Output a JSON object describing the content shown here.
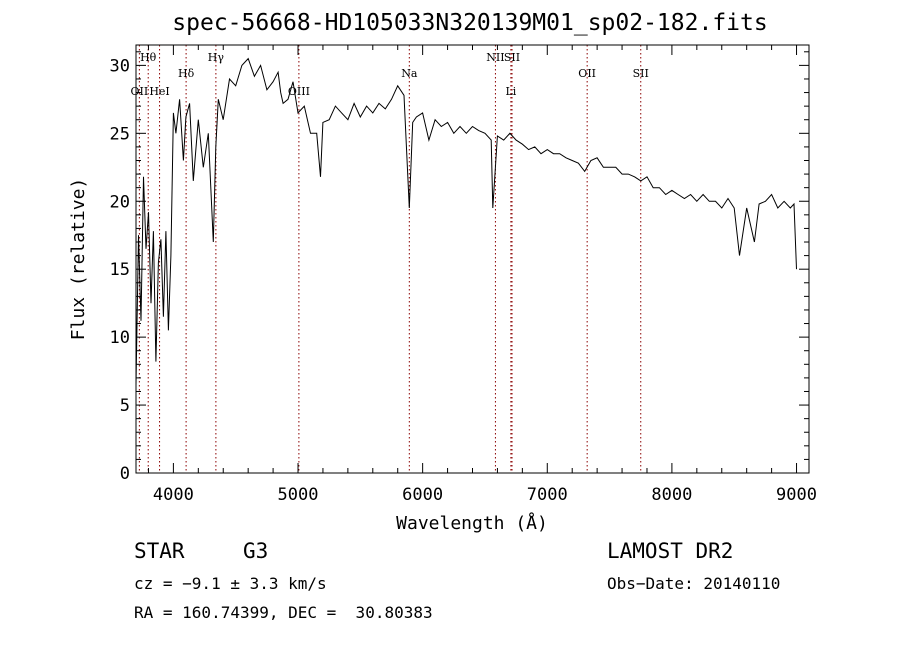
{
  "chart_data": {
    "type": "line",
    "title": "spec-56668-HD105033N320139M01_sp02-182.fits",
    "xlabel": "Wavelength (Å)",
    "ylabel": "Flux (relative)",
    "xlim": [
      3700,
      9100
    ],
    "ylim": [
      0,
      31.5
    ],
    "xticks": [
      4000,
      5000,
      6000,
      7000,
      8000,
      9000
    ],
    "yticks": [
      0,
      5,
      10,
      15,
      20,
      25,
      30
    ],
    "grid": false,
    "line_color": "#000000",
    "marker_color": "#8b0000",
    "series": [
      {
        "x": [
          3700,
          3720,
          3740,
          3760,
          3780,
          3800,
          3820,
          3840,
          3860,
          3880,
          3900,
          3920,
          3940,
          3960,
          3980,
          4000,
          4020,
          4050,
          4080,
          4100,
          4130,
          4160,
          4200,
          4240,
          4280,
          4320,
          4340,
          4360,
          4400,
          4450,
          4500,
          4550,
          4600,
          4650,
          4700,
          4750,
          4800,
          4840,
          4861,
          4880,
          4920,
          4960,
          5000,
          5050,
          5100,
          5150,
          5180,
          5200,
          5250,
          5300,
          5350,
          5400,
          5450,
          5500,
          5550,
          5600,
          5650,
          5700,
          5750,
          5800,
          5850,
          5893,
          5920,
          5950,
          6000,
          6050,
          6100,
          6150,
          6200,
          6250,
          6300,
          6350,
          6400,
          6450,
          6500,
          6550,
          6563,
          6600,
          6650,
          6700,
          6750,
          6800,
          6850,
          6900,
          6950,
          7000,
          7050,
          7100,
          7150,
          7200,
          7250,
          7300,
          7350,
          7400,
          7450,
          7500,
          7550,
          7600,
          7650,
          7700,
          7750,
          7800,
          7850,
          7900,
          7950,
          8000,
          8050,
          8100,
          8150,
          8200,
          8250,
          8300,
          8350,
          8400,
          8450,
          8500,
          8542,
          8600,
          8662,
          8700,
          8750,
          8800,
          8850,
          8900,
          8950,
          8980,
          9000
        ],
        "y": [
          6.5,
          17.5,
          11.2,
          21.8,
          16.5,
          19.2,
          12.5,
          17.8,
          8.2,
          15.5,
          17.2,
          11.5,
          17.8,
          10.5,
          16.0,
          26.5,
          25.0,
          27.5,
          23.0,
          26.2,
          27.2,
          21.5,
          26.0,
          22.5,
          25.0,
          17.0,
          24.0,
          27.5,
          26.0,
          29.0,
          28.5,
          30.0,
          30.5,
          29.2,
          30.0,
          28.2,
          28.8,
          29.5,
          28.0,
          27.2,
          27.5,
          28.8,
          26.5,
          27.0,
          25.0,
          25.0,
          21.8,
          25.8,
          26.0,
          27.0,
          26.5,
          26.0,
          27.2,
          26.2,
          27.0,
          26.5,
          27.2,
          26.8,
          27.5,
          28.5,
          27.8,
          19.5,
          25.8,
          26.2,
          26.5,
          24.5,
          26.0,
          25.5,
          25.8,
          25.0,
          25.5,
          25.0,
          25.5,
          25.2,
          25.0,
          24.5,
          19.5,
          24.8,
          24.5,
          25.0,
          24.5,
          24.2,
          23.8,
          24.0,
          23.5,
          23.8,
          23.5,
          23.5,
          23.2,
          23.0,
          22.8,
          22.2,
          23.0,
          23.2,
          22.5,
          22.5,
          22.5,
          22.0,
          22.0,
          21.8,
          21.5,
          21.8,
          21.0,
          21.0,
          20.5,
          20.8,
          20.5,
          20.2,
          20.5,
          20.0,
          20.5,
          20.0,
          20.0,
          19.5,
          20.2,
          19.5,
          16.0,
          19.5,
          17.0,
          19.8,
          20.0,
          20.5,
          19.5,
          20.0,
          19.5,
          19.8,
          15.0
        ]
      }
    ],
    "lines": [
      {
        "label": "Hθ",
        "x": 3798,
        "level": 0
      },
      {
        "label": "OII",
        "x": 3727,
        "level": 2
      },
      {
        "label": "HeI",
        "x": 3889,
        "level": 2
      },
      {
        "label": "Hδ",
        "x": 4102,
        "level": 1
      },
      {
        "label": "Hγ",
        "x": 4341,
        "level": 0
      },
      {
        "label": "OIII",
        "x": 5007,
        "level": 2
      },
      {
        "label": "Na",
        "x": 5893,
        "level": 1
      },
      {
        "label": "NII",
        "x": 6584,
        "level": 0
      },
      {
        "label": "SII",
        "x": 6717,
        "level": 0
      },
      {
        "label": "Li",
        "x": 6708,
        "level": 2
      },
      {
        "label": "OII",
        "x": 7320,
        "level": 1
      },
      {
        "label": "SII",
        "x": 7750,
        "level": 1
      }
    ]
  },
  "info": {
    "object_class": "STAR",
    "subclass": "G3",
    "redshift": "cz = −9.1 ± 3.3 km/s",
    "coords": "RA = 160.74399, DEC =  30.80383",
    "survey": "LAMOST DR2",
    "obs_date": "Obs−Date: 20140110"
  }
}
